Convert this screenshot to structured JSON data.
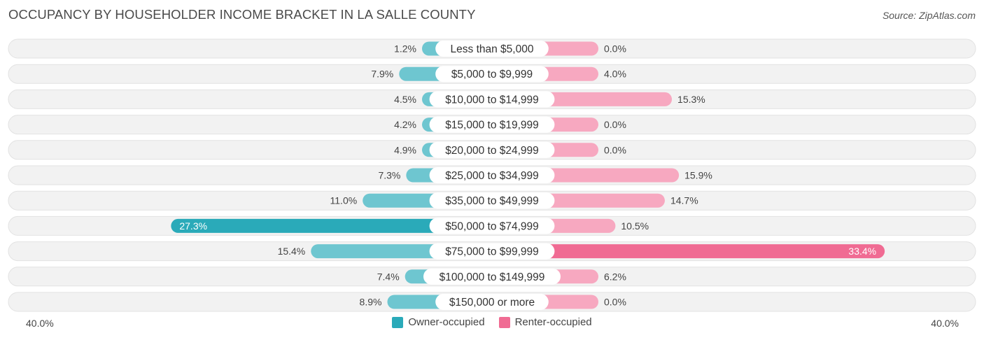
{
  "title": "OCCUPANCY BY HOUSEHOLDER INCOME BRACKET IN LA SALLE COUNTY",
  "source": "Source: ZipAtlas.com",
  "colors": {
    "owner": "#6ec6d0",
    "owner_strong": "#2aaab9",
    "renter": "#f7a8c0",
    "renter_strong": "#f06b93",
    "row_bg": "#f2f2f2",
    "row_border": "#e2e2e2"
  },
  "chart_data": {
    "type": "bar",
    "orientation": "horizontal-diverging",
    "categories": [
      "Less than $5,000",
      "$5,000 to $9,999",
      "$10,000 to $14,999",
      "$15,000 to $19,999",
      "$20,000 to $24,999",
      "$25,000 to $34,999",
      "$35,000 to $49,999",
      "$50,000 to $74,999",
      "$75,000 to $99,999",
      "$100,000 to $149,999",
      "$150,000 or more"
    ],
    "series": [
      {
        "name": "Owner-occupied",
        "side": "left",
        "values": [
          1.2,
          7.9,
          4.5,
          4.2,
          4.9,
          7.3,
          11.0,
          27.3,
          15.4,
          7.4,
          8.9
        ],
        "labels": [
          "1.2%",
          "7.9%",
          "4.5%",
          "4.2%",
          "4.9%",
          "7.3%",
          "11.0%",
          "27.3%",
          "15.4%",
          "7.4%",
          "8.9%"
        ]
      },
      {
        "name": "Renter-occupied",
        "side": "right",
        "values": [
          0.0,
          4.0,
          15.3,
          0.0,
          0.0,
          15.9,
          14.7,
          10.5,
          33.4,
          6.2,
          0.0
        ],
        "labels": [
          "0.0%",
          "4.0%",
          "15.3%",
          "0.0%",
          "0.0%",
          "15.9%",
          "14.7%",
          "10.5%",
          "33.4%",
          "6.2%",
          "0.0%"
        ]
      }
    ],
    "xlim": [
      -40,
      40
    ],
    "axis_min_label": "40.0%",
    "axis_max_label": "40.0%",
    "legend_position": "bottom-center",
    "unit": "%"
  }
}
